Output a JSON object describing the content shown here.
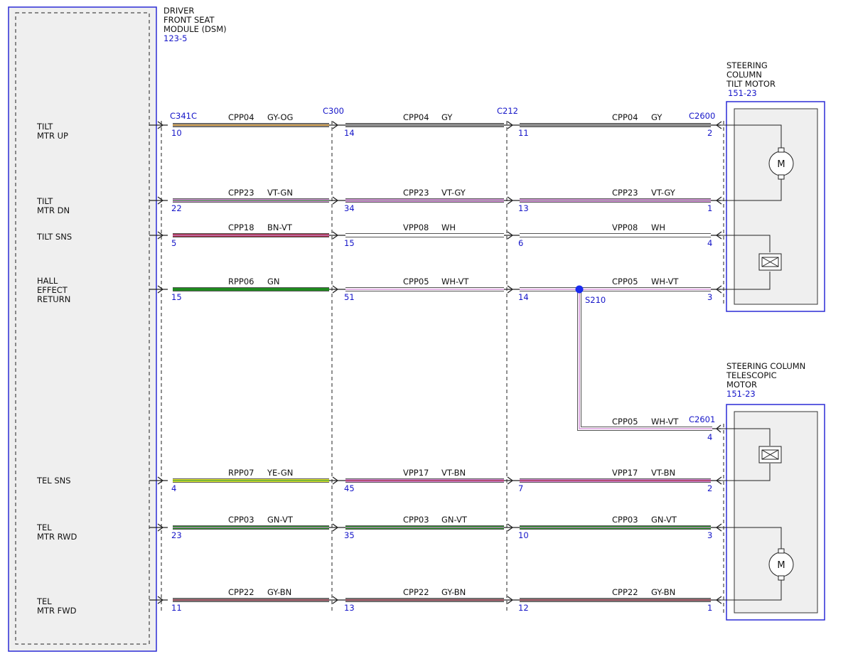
{
  "colors": {
    "module_border": "#2b2bd6",
    "dashed": "#222222",
    "module_fill": "#efefef",
    "text": "#111111",
    "ref_blue": "#1515c8",
    "splice_dot": "#1a2bf0"
  },
  "module": {
    "title_lines": [
      "DRIVER",
      "FRONT SEAT",
      "MODULE (DSM)"
    ],
    "ref": "123-5"
  },
  "tilt_motor": {
    "title_lines": [
      "STEERING",
      "COLUMN",
      "TILT MOTOR"
    ],
    "ref": "151-23",
    "motor_symbol": "M"
  },
  "tele_motor": {
    "title_lines": [
      "STEERING COLUMN",
      "TELESCOPIC",
      "MOTOR"
    ],
    "ref": "151-23",
    "motor_symbol": "M"
  },
  "connectors": {
    "c341c": "C341C",
    "c300": "C300",
    "c212": "C212",
    "c2600": "C2600",
    "c2601": "C2601"
  },
  "splice": {
    "name": "S210"
  },
  "splice_branch": {
    "circuit": "CPP05",
    "color": "WH-VT",
    "pin": "4"
  },
  "circuits": [
    {
      "id": "tilt-mtr-up",
      "label_lines": [
        "TILT",
        "MTR UP"
      ],
      "segments": [
        {
          "circuit": "CPP04",
          "color": "GY-OG",
          "pin": "10",
          "stroke": "#8a8a8a",
          "stripe": "#f0a020"
        },
        {
          "circuit": "CPP04",
          "color": "GY",
          "pin": "14",
          "stroke": "#8a8a8a",
          "stripe": ""
        },
        {
          "circuit": "CPP04",
          "color": "GY",
          "pin": "11",
          "end_pin": "2",
          "stroke": "#8a8a8a",
          "stripe": ""
        }
      ]
    },
    {
      "id": "tilt-mtr-dn",
      "label_lines": [
        "TILT",
        "MTR DN"
      ],
      "segments": [
        {
          "circuit": "CPP23",
          "color": "VT-GN",
          "pin": "22",
          "stroke": "#d38ad8",
          "stripe": "#3a9a3a"
        },
        {
          "circuit": "CPP23",
          "color": "VT-GY",
          "pin": "34",
          "stroke": "#d38ad8",
          "stripe": "#9a9a9a"
        },
        {
          "circuit": "CPP23",
          "color": "VT-GY",
          "pin": "13",
          "end_pin": "1",
          "stroke": "#d38ad8",
          "stripe": "#9a9a9a"
        }
      ]
    },
    {
      "id": "tilt-sns",
      "label_lines": [
        "TILT SNS"
      ],
      "segments": [
        {
          "circuit": "CPP18",
          "color": "BN-VT",
          "pin": "5",
          "stroke": "#a0283c",
          "stripe": "#d38ad8"
        },
        {
          "circuit": "VPP08",
          "color": "WH",
          "pin": "15",
          "stroke": "#ffffff",
          "stripe": ""
        },
        {
          "circuit": "VPP08",
          "color": "WH",
          "pin": "6",
          "end_pin": "4",
          "stroke": "#ffffff",
          "stripe": ""
        }
      ]
    },
    {
      "id": "hall-effect-return",
      "label_lines": [
        "HALL",
        "EFFECT",
        "RETURN"
      ],
      "segments": [
        {
          "circuit": "RPP06",
          "color": "GN",
          "pin": "15",
          "stroke": "#1f8a1f",
          "stripe": ""
        },
        {
          "circuit": "CPP05",
          "color": "WH-VT",
          "pin": "51",
          "stroke": "#ffffff",
          "stripe": "#d38ad8"
        },
        {
          "circuit": "CPP05",
          "color": "WH-VT",
          "pin": "14",
          "end_pin": "3",
          "stroke": "#ffffff",
          "stripe": "#d38ad8"
        }
      ]
    },
    {
      "id": "tel-sns",
      "label_lines": [
        "TEL SNS"
      ],
      "segments": [
        {
          "circuit": "RPP07",
          "color": "YE-GN",
          "pin": "4",
          "stroke": "#e8e830",
          "stripe": "#3a9a3a"
        },
        {
          "circuit": "VPP17",
          "color": "VT-BN",
          "pin": "45",
          "stroke": "#d38ad8",
          "stripe": "#a0283c"
        },
        {
          "circuit": "VPP17",
          "color": "VT-BN",
          "pin": "7",
          "end_pin": "2",
          "stroke": "#d38ad8",
          "stripe": "#a0283c"
        }
      ]
    },
    {
      "id": "tel-mtr-rwd",
      "label_lines": [
        "TEL",
        "MTR RWD"
      ],
      "segments": [
        {
          "circuit": "CPP03",
          "color": "GN-VT",
          "pin": "23",
          "stroke": "#1f8a1f",
          "stripe": "#d38ad8"
        },
        {
          "circuit": "CPP03",
          "color": "GN-VT",
          "pin": "35",
          "stroke": "#1f8a1f",
          "stripe": "#d38ad8"
        },
        {
          "circuit": "CPP03",
          "color": "GN-VT",
          "pin": "10",
          "end_pin": "3",
          "stroke": "#1f8a1f",
          "stripe": "#d38ad8"
        }
      ]
    },
    {
      "id": "tel-mtr-fwd",
      "label_lines": [
        "TEL",
        "MTR FWD"
      ],
      "segments": [
        {
          "circuit": "CPP22",
          "color": "GY-BN",
          "pin": "11",
          "stroke": "#8a8a8a",
          "stripe": "#a0283c"
        },
        {
          "circuit": "CPP22",
          "color": "GY-BN",
          "pin": "13",
          "stroke": "#8a8a8a",
          "stripe": "#a0283c"
        },
        {
          "circuit": "CPP22",
          "color": "GY-BN",
          "pin": "12",
          "end_pin": "1",
          "stroke": "#8a8a8a",
          "stripe": "#a0283c"
        }
      ]
    }
  ]
}
